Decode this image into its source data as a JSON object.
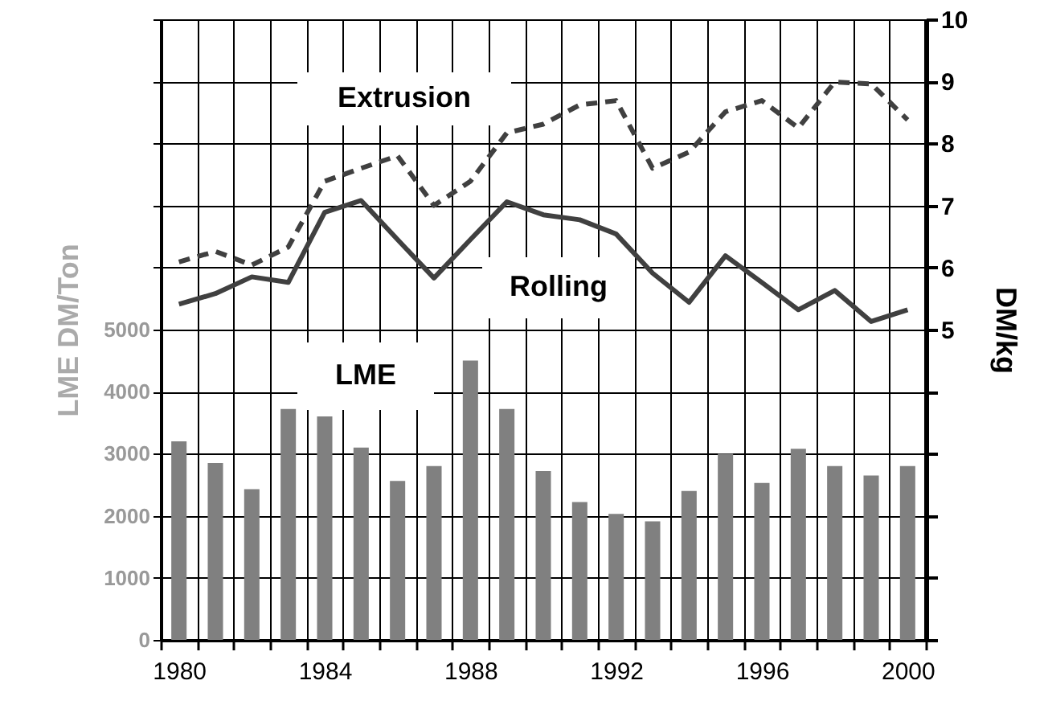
{
  "chart_data": {
    "type": "bar",
    "categories": [
      "1980",
      null,
      null,
      null,
      "1984",
      null,
      null,
      null,
      "1988",
      null,
      null,
      null,
      "1992",
      null,
      null,
      null,
      "1996",
      null,
      null,
      null,
      "2000"
    ],
    "series": [
      {
        "name": "LME",
        "color": "#808080",
        "values": [
          3200,
          2850,
          2430,
          3720,
          3600,
          3100,
          2560,
          2800,
          4500,
          3720,
          2720,
          2220,
          2030,
          1910,
          2400,
          3000,
          2530,
          3080,
          2800,
          2650,
          2800
        ]
      },
      {
        "name": "Extrusion",
        "type": "line",
        "axis": "y2",
        "color": "#404040",
        "line_style": "dashed",
        "values": [
          6.09,
          6.26,
          6.04,
          6.33,
          7.39,
          7.6,
          7.8,
          7.0,
          7.39,
          8.17,
          8.31,
          8.62,
          8.69,
          7.6,
          7.86,
          8.51,
          8.69,
          8.25,
          8.99,
          8.96,
          8.38
        ]
      },
      {
        "name": "Rolling",
        "type": "line",
        "axis": "y2",
        "color": "#404040",
        "line_style": "solid",
        "values": [
          5.41,
          5.58,
          5.85,
          5.76,
          6.89,
          7.08,
          6.45,
          5.83,
          6.45,
          7.06,
          6.85,
          6.77,
          6.54,
          5.91,
          5.44,
          6.19,
          5.76,
          5.32,
          5.63,
          5.13,
          5.32
        ]
      }
    ],
    "ylabel": "LME DM/Ton",
    "y2label": "DM/kg",
    "ylim": [
      0,
      10000
    ],
    "yticks": [
      0,
      1000,
      2000,
      3000,
      4000,
      5000,
      {
        "value": 6000,
        "label": null
      },
      {
        "value": 7000,
        "label": null
      },
      {
        "value": 8000,
        "label": null
      },
      {
        "value": 9000,
        "label": null
      },
      {
        "value": 10000,
        "label": null
      }
    ],
    "y2lim": [
      0,
      10
    ],
    "y2ticks": [
      {
        "value": 0,
        "label": null
      },
      {
        "value": 1,
        "label": null
      },
      {
        "value": 2,
        "label": null
      },
      {
        "value": 3,
        "label": null
      },
      {
        "value": 4,
        "label": null
      },
      5,
      6,
      7,
      8,
      9,
      10
    ],
    "grid": true
  }
}
